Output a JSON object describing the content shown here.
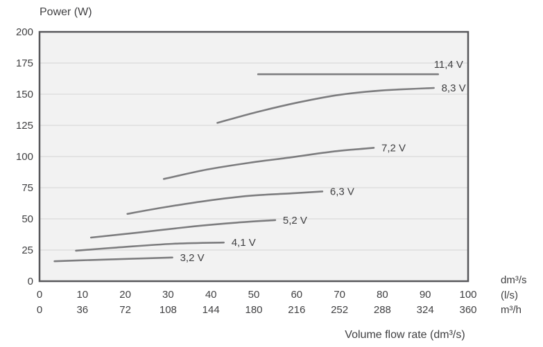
{
  "colors": {
    "page_bg": "#ffffff",
    "plot_bg": "#f2f2f2",
    "grid": "#e3e3e3",
    "border": "#57575a",
    "curve": "#7c7c7e",
    "text": "#3f3f41"
  },
  "chart_data": {
    "type": "line",
    "title": "",
    "ylabel": "Power (W)",
    "xlabel": "Volume flow rate (dm³/s)",
    "x_axis_units": [
      "dm³/s",
      "(l/s)",
      "m³/h"
    ],
    "xlim": [
      0,
      100
    ],
    "ylim": [
      0,
      200
    ],
    "y_ticks": [
      200,
      175,
      150,
      125,
      100,
      75,
      50,
      25,
      0
    ],
    "x_ticks_ls": [
      0,
      10,
      20,
      30,
      40,
      50,
      60,
      70,
      80,
      90,
      100
    ],
    "x_ticks_m3h": [
      0,
      36,
      72,
      108,
      144,
      180,
      216,
      252,
      288,
      324,
      360
    ],
    "grid": "horizontal",
    "legend_position": "inline labels at end of each curve",
    "series": [
      {
        "name": "3,2 V",
        "points": [
          [
            3.5,
            16
          ],
          [
            12,
            17
          ],
          [
            21.5,
            18
          ],
          [
            31,
            19
          ]
        ]
      },
      {
        "name": "4,1 V",
        "points": [
          [
            8.5,
            24.5
          ],
          [
            18,
            27
          ],
          [
            31,
            30
          ],
          [
            43,
            31
          ]
        ]
      },
      {
        "name": "5,2 V",
        "points": [
          [
            12,
            35
          ],
          [
            23,
            39
          ],
          [
            36,
            44
          ],
          [
            46,
            47
          ],
          [
            55,
            49
          ]
        ]
      },
      {
        "name": "6,3 V",
        "points": [
          [
            20.5,
            54
          ],
          [
            29.5,
            59.5
          ],
          [
            39,
            64.5
          ],
          [
            49,
            68.5
          ],
          [
            59,
            70.5
          ],
          [
            66,
            72
          ]
        ]
      },
      {
        "name": "7,2 V",
        "points": [
          [
            29,
            82
          ],
          [
            39,
            89.5
          ],
          [
            49,
            95
          ],
          [
            59,
            99.5
          ],
          [
            68.5,
            104
          ],
          [
            78,
            107
          ]
        ]
      },
      {
        "name": "8,3 V",
        "points": [
          [
            41.5,
            127
          ],
          [
            50.5,
            135.5
          ],
          [
            60.5,
            143.5
          ],
          [
            70,
            149.5
          ],
          [
            80,
            153
          ],
          [
            92,
            155
          ]
        ]
      },
      {
        "name": "11,4 V",
        "points": [
          [
            51,
            166
          ],
          [
            93,
            166
          ]
        ],
        "label_dx": -6,
        "label_dy": -9
      }
    ]
  }
}
